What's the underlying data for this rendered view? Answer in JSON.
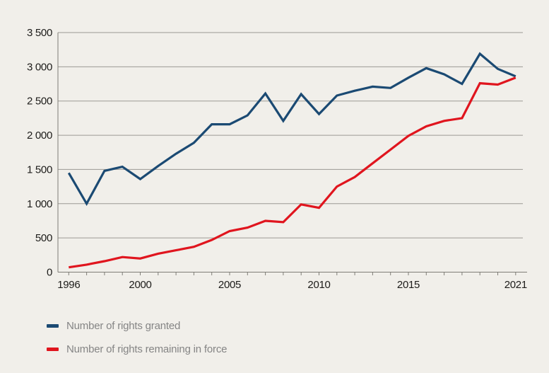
{
  "chart_data": {
    "type": "line",
    "title": "",
    "xlabel": "",
    "ylabel": "",
    "x": [
      1996,
      1997,
      1998,
      1999,
      2000,
      2001,
      2002,
      2003,
      2004,
      2005,
      2006,
      2007,
      2008,
      2009,
      2010,
      2011,
      2012,
      2013,
      2014,
      2015,
      2016,
      2017,
      2018,
      2019,
      2020,
      2021
    ],
    "series": [
      {
        "name": "Number of rights granted",
        "color": "#1b4a73",
        "values": [
          1450,
          1000,
          1480,
          1540,
          1360,
          1550,
          1730,
          1890,
          2160,
          2160,
          2290,
          2610,
          2210,
          2600,
          2310,
          2580,
          2650,
          2710,
          2690,
          2840,
          2980,
          2890,
          2750,
          3190,
          2970,
          2860
        ]
      },
      {
        "name": "Number of rights remaining in force",
        "color": "#e0151e",
        "values": [
          70,
          110,
          160,
          220,
          200,
          270,
          320,
          370,
          470,
          600,
          650,
          750,
          730,
          990,
          940,
          1250,
          1390,
          1590,
          1790,
          1990,
          2130,
          2210,
          2250,
          2760,
          2740,
          2840
        ]
      }
    ],
    "ylim": [
      0,
      3500
    ],
    "ytick_step": 500,
    "ytick_labels": [
      "0",
      "500",
      "1 000",
      "1 500",
      "2 000",
      "2 500",
      "3 000",
      "3 500"
    ],
    "xticks_labeled": [
      1996,
      2000,
      2005,
      2010,
      2015,
      2021
    ],
    "grid": "horizontal",
    "legend_position": "bottom-left",
    "colors": {
      "grid": "#9c9a94",
      "axis": "#7f7d77",
      "tick_label": "#1d1c1a",
      "background": "#f1efea",
      "legend_text": "#858585"
    }
  }
}
